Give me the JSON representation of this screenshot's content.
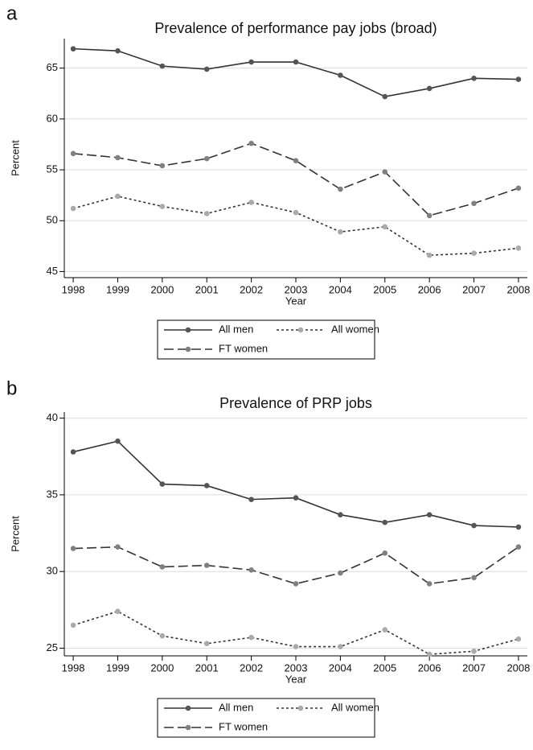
{
  "chart_data": [
    {
      "type": "line",
      "panel_label": "a",
      "title": "Prevalence of performance pay jobs (broad)",
      "xlabel": "Year",
      "ylabel": "Percent",
      "x": [
        1998,
        1999,
        2000,
        2001,
        2002,
        2003,
        2004,
        2005,
        2006,
        2007,
        2008
      ],
      "xlim": [
        1997.8,
        2008.2
      ],
      "xticks": [
        1998,
        1999,
        2000,
        2001,
        2002,
        2003,
        2004,
        2005,
        2006,
        2007,
        2008
      ],
      "ylim": [
        44.4,
        67.9
      ],
      "yticks": [
        45,
        50,
        55,
        60,
        65
      ],
      "grid": true,
      "series": [
        {
          "name": "All men",
          "color": "#333333",
          "marker_color": "#555555",
          "dash": "solid",
          "values": [
            66.9,
            66.7,
            65.2,
            64.9,
            65.6,
            65.6,
            64.3,
            62.2,
            63.0,
            64.0,
            63.9
          ]
        },
        {
          "name": "FT women",
          "color": "#333333",
          "marker_color": "#808080",
          "dash": "dashed",
          "values": [
            56.6,
            56.2,
            55.4,
            56.1,
            57.6,
            55.9,
            53.1,
            54.8,
            50.5,
            51.7,
            53.2
          ]
        },
        {
          "name": "All women",
          "color": "#333333",
          "marker_color": "#aaaaaa",
          "dash": "dotted",
          "values": [
            51.2,
            52.4,
            51.4,
            50.7,
            51.8,
            50.8,
            48.9,
            49.4,
            46.6,
            46.8,
            47.3
          ]
        }
      ]
    },
    {
      "type": "line",
      "panel_label": "b",
      "title": "Prevalence of PRP jobs",
      "xlabel": "Year",
      "ylabel": "Percent",
      "x": [
        1998,
        1999,
        2000,
        2001,
        2002,
        2003,
        2004,
        2005,
        2006,
        2007,
        2008
      ],
      "xlim": [
        1997.8,
        2008.2
      ],
      "xticks": [
        1998,
        1999,
        2000,
        2001,
        2002,
        2003,
        2004,
        2005,
        2006,
        2007,
        2008
      ],
      "ylim": [
        24.5,
        40.4
      ],
      "yticks": [
        25,
        30,
        35,
        40
      ],
      "grid": true,
      "series": [
        {
          "name": "All men",
          "color": "#333333",
          "marker_color": "#555555",
          "dash": "solid",
          "values": [
            37.8,
            38.5,
            35.7,
            35.6,
            34.7,
            34.8,
            33.7,
            33.2,
            33.7,
            33.0,
            32.9
          ]
        },
        {
          "name": "FT women",
          "color": "#333333",
          "marker_color": "#808080",
          "dash": "dashed",
          "values": [
            31.5,
            31.6,
            30.3,
            30.4,
            30.1,
            29.2,
            29.9,
            31.2,
            29.2,
            29.6,
            31.6
          ]
        },
        {
          "name": "All women",
          "color": "#333333",
          "marker_color": "#aaaaaa",
          "dash": "dotted",
          "values": [
            26.5,
            27.4,
            25.8,
            25.3,
            25.7,
            25.1,
            25.1,
            26.2,
            24.6,
            24.8,
            25.6
          ]
        }
      ]
    }
  ]
}
